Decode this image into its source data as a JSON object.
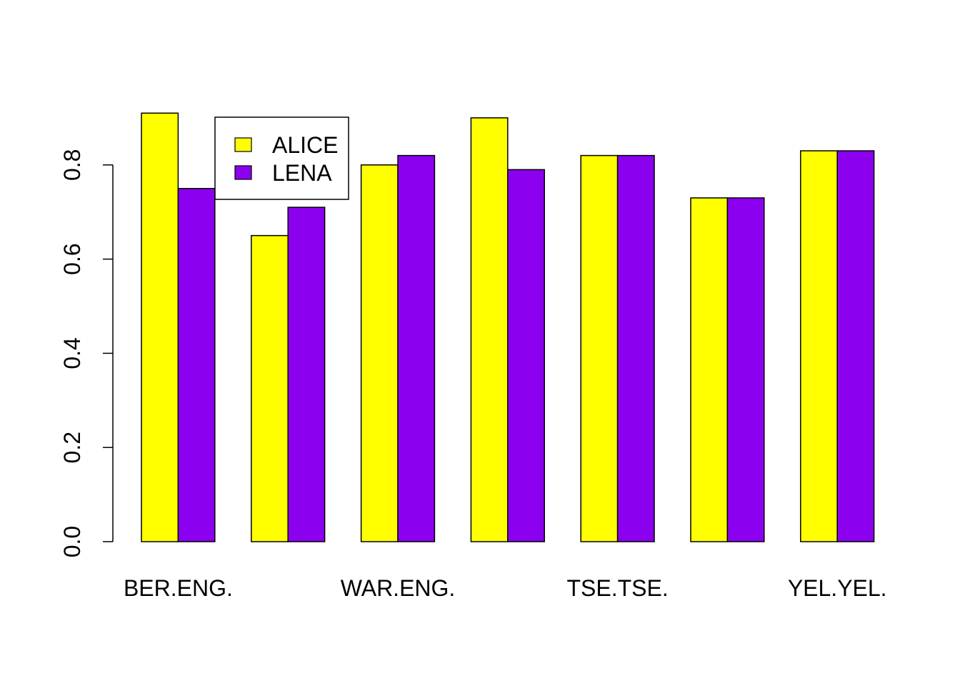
{
  "chart_data": {
    "type": "bar",
    "categories": [
      "BER.ENG.",
      "",
      "WAR.ENG.",
      "",
      "TSE.TSE.",
      "",
      "YEL.YEL."
    ],
    "series": [
      {
        "name": "ALICE",
        "color": "#FFFF00",
        "values": [
          0.91,
          0.65,
          0.8,
          0.9,
          0.82,
          0.73,
          0.83
        ]
      },
      {
        "name": "LENA",
        "color": "#8B00EE",
        "values": [
          0.75,
          0.71,
          0.82,
          0.79,
          0.82,
          0.73,
          0.83
        ]
      }
    ],
    "yticks": [
      "0.0",
      "0.2",
      "0.4",
      "0.6",
      "0.8"
    ],
    "ylim": [
      0,
      0.91
    ],
    "legend_position": "top-left",
    "grid": false
  }
}
